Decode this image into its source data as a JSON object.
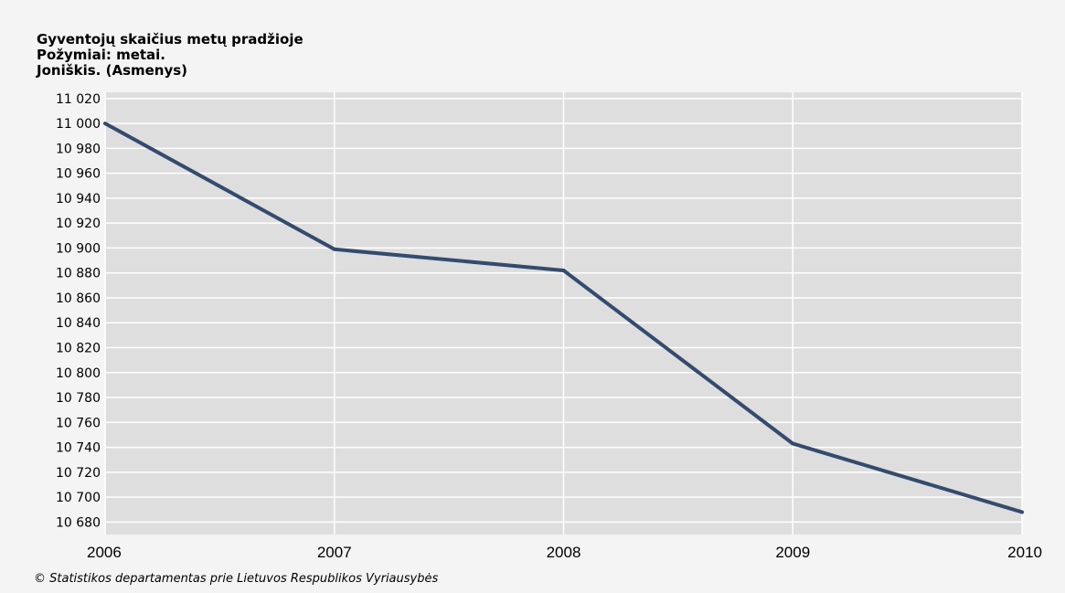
{
  "chart_data": {
    "type": "line",
    "title": "Gyventojų skaičius metų pradžioje",
    "subtitle": "Požymiai: metai.",
    "region_unit": "Joniškis. (Asmenys)",
    "x": [
      "2006",
      "2007",
      "2008",
      "2009",
      "2010"
    ],
    "series": [
      {
        "values": [
          11000,
          10899,
          10882,
          10743,
          10688
        ]
      }
    ],
    "y_ticks": [
      "10 680",
      "10 700",
      "10 720",
      "10 740",
      "10 760",
      "10 780",
      "10 800",
      "10 820",
      "10 840",
      "10 860",
      "10 880",
      "10 900",
      "10 920",
      "10 940",
      "10 960",
      "10 980",
      "11 000",
      "11 020"
    ],
    "ylim": [
      10670,
      11025
    ],
    "grid": true,
    "line_color": "#344b6e",
    "plot_background": "#dedede"
  },
  "footer": "© Statistikos departamentas prie Lietuvos Respublikos Vyriausybės"
}
